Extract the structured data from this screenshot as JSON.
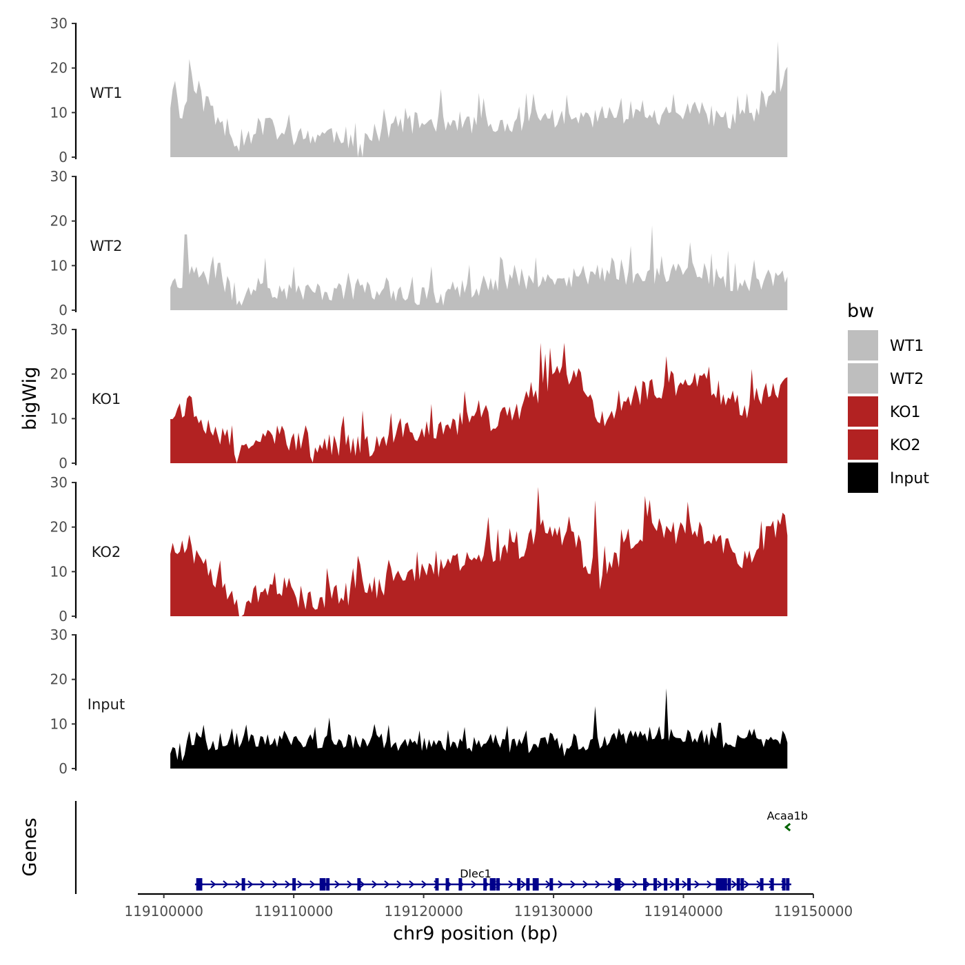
{
  "chart_data": {
    "type": "area",
    "ylabel": "bigWig",
    "xlabel": "chr9 position (bp)",
    "xlim": [
      119098000,
      119150000
    ],
    "x_ticks": [
      119100000,
      119110000,
      119120000,
      119130000,
      119140000,
      119150000
    ],
    "x_tick_labels": [
      "119100000",
      "119110000",
      "119120000",
      "119130000",
      "119140000",
      "119150000"
    ],
    "data_range": [
      119100500,
      119148000
    ],
    "ylim": [
      0,
      30
    ],
    "y_ticks": [
      0,
      10,
      20,
      30
    ],
    "y_tick_labels": [
      "0",
      "10",
      "20",
      "30"
    ],
    "legend": {
      "title": "bw",
      "position": "right",
      "entries": [
        {
          "label": "WT1",
          "color": "#bebebe"
        },
        {
          "label": "WT2",
          "color": "#bebebe"
        },
        {
          "label": "KO1",
          "color": "#b22222"
        },
        {
          "label": "KO2",
          "color": "#b22222"
        },
        {
          "label": "Input",
          "color": "#000000"
        }
      ]
    },
    "series": [
      {
        "name": "WT1",
        "color": "#bebebe",
        "seed": 11,
        "noise": 5,
        "profile": [
          [
            0,
            12
          ],
          [
            0.02,
            9
          ],
          [
            0.03,
            14
          ],
          [
            0.04,
            17
          ],
          [
            0.06,
            10
          ],
          [
            0.08,
            8
          ],
          [
            0.1,
            5
          ],
          [
            0.11,
            1.5
          ],
          [
            0.12,
            4
          ],
          [
            0.15,
            7
          ],
          [
            0.2,
            4
          ],
          [
            0.25,
            5
          ],
          [
            0.28,
            5
          ],
          [
            0.31,
            0.5
          ],
          [
            0.33,
            4
          ],
          [
            0.36,
            7
          ],
          [
            0.45,
            8
          ],
          [
            0.5,
            7
          ],
          [
            0.55,
            6
          ],
          [
            0.6,
            9
          ],
          [
            0.65,
            8
          ],
          [
            0.7,
            9
          ],
          [
            0.75,
            10
          ],
          [
            0.8,
            8
          ],
          [
            0.85,
            10
          ],
          [
            0.9,
            8
          ],
          [
            0.95,
            9
          ],
          [
            0.98,
            12
          ],
          [
            1,
            18
          ]
        ],
        "peaks": [
          [
            0.03,
            22
          ],
          [
            0.985,
            26
          ]
        ]
      },
      {
        "name": "WT2",
        "color": "#bebebe",
        "seed": 23,
        "noise": 4.5,
        "profile": [
          [
            0,
            6
          ],
          [
            0.02,
            6
          ],
          [
            0.03,
            9
          ],
          [
            0.05,
            7
          ],
          [
            0.08,
            7
          ],
          [
            0.1,
            4
          ],
          [
            0.11,
            0.5
          ],
          [
            0.13,
            5
          ],
          [
            0.2,
            4
          ],
          [
            0.3,
            4
          ],
          [
            0.35,
            4
          ],
          [
            0.4,
            3
          ],
          [
            0.45,
            3
          ],
          [
            0.5,
            5
          ],
          [
            0.55,
            6
          ],
          [
            0.6,
            7
          ],
          [
            0.65,
            6
          ],
          [
            0.7,
            8
          ],
          [
            0.75,
            7
          ],
          [
            0.8,
            8
          ],
          [
            0.85,
            9
          ],
          [
            0.88,
            7
          ],
          [
            0.92,
            6
          ],
          [
            0.95,
            6
          ],
          [
            1,
            7
          ]
        ],
        "peaks": [
          [
            0.025,
            17
          ],
          [
            0.78,
            19
          ]
        ]
      },
      {
        "name": "KO1",
        "color": "#b22222",
        "seed": 37,
        "noise": 5.5,
        "profile": [
          [
            0,
            11
          ],
          [
            0.03,
            13
          ],
          [
            0.05,
            10
          ],
          [
            0.08,
            6
          ],
          [
            0.1,
            4
          ],
          [
            0.11,
            0.3
          ],
          [
            0.12,
            2
          ],
          [
            0.14,
            7
          ],
          [
            0.18,
            6
          ],
          [
            0.22,
            3
          ],
          [
            0.23,
            1
          ],
          [
            0.25,
            4
          ],
          [
            0.3,
            4
          ],
          [
            0.33,
            3
          ],
          [
            0.35,
            5
          ],
          [
            0.4,
            7
          ],
          [
            0.45,
            8
          ],
          [
            0.5,
            9
          ],
          [
            0.55,
            10
          ],
          [
            0.6,
            16
          ],
          [
            0.63,
            20
          ],
          [
            0.67,
            18
          ],
          [
            0.69,
            9
          ],
          [
            0.72,
            11
          ],
          [
            0.75,
            15
          ],
          [
            0.8,
            17
          ],
          [
            0.85,
            18
          ],
          [
            0.9,
            15
          ],
          [
            0.93,
            12
          ],
          [
            0.97,
            16
          ],
          [
            1,
            15
          ]
        ],
        "peaks": [
          [
            0.6,
            27
          ],
          [
            0.64,
            27
          ]
        ]
      },
      {
        "name": "KO2",
        "color": "#b22222",
        "seed": 51,
        "noise": 5.5,
        "profile": [
          [
            0,
            15
          ],
          [
            0.03,
            14
          ],
          [
            0.06,
            10
          ],
          [
            0.08,
            8
          ],
          [
            0.1,
            5
          ],
          [
            0.11,
            1
          ],
          [
            0.12,
            1
          ],
          [
            0.13,
            4
          ],
          [
            0.18,
            7
          ],
          [
            0.2,
            5
          ],
          [
            0.22,
            3
          ],
          [
            0.24,
            4
          ],
          [
            0.3,
            5
          ],
          [
            0.35,
            7
          ],
          [
            0.4,
            9
          ],
          [
            0.45,
            11
          ],
          [
            0.5,
            13
          ],
          [
            0.55,
            14
          ],
          [
            0.6,
            17
          ],
          [
            0.65,
            18
          ],
          [
            0.67,
            11
          ],
          [
            0.7,
            7
          ],
          [
            0.73,
            14
          ],
          [
            0.78,
            18
          ],
          [
            0.85,
            19
          ],
          [
            0.9,
            16
          ],
          [
            0.93,
            12
          ],
          [
            0.97,
            18
          ],
          [
            1,
            20
          ]
        ],
        "peaks": [
          [
            0.595,
            29
          ],
          [
            0.69,
            26
          ],
          [
            0.77,
            27
          ]
        ]
      },
      {
        "name": "Input",
        "color": "#000000",
        "seed": 67,
        "noise": 3.5,
        "profile": [
          [
            0,
            4
          ],
          [
            0.02,
            3
          ],
          [
            0.04,
            7
          ],
          [
            0.06,
            5
          ],
          [
            0.1,
            6
          ],
          [
            0.2,
            6
          ],
          [
            0.3,
            6
          ],
          [
            0.4,
            5
          ],
          [
            0.5,
            5
          ],
          [
            0.6,
            5
          ],
          [
            0.65,
            4
          ],
          [
            0.7,
            6
          ],
          [
            0.75,
            7
          ],
          [
            0.8,
            8
          ],
          [
            0.83,
            6
          ],
          [
            0.86,
            7
          ],
          [
            0.9,
            6
          ],
          [
            0.95,
            6
          ],
          [
            1,
            7
          ]
        ],
        "peaks": [
          [
            0.805,
            18
          ],
          [
            0.69,
            14
          ]
        ]
      }
    ],
    "genes_track": {
      "label": "Genes",
      "genes": [
        {
          "name": "Dlec1",
          "strand": "+",
          "color": "#00008b",
          "start": 119102400,
          "end": 119148300,
          "exons": [
            119102600,
            119102800,
            119106100,
            119110000,
            119112100,
            119112300,
            119112600,
            119115000,
            119121000,
            119121800,
            119122800,
            119124700,
            119125200,
            119125400,
            119125700,
            119127300,
            119128000,
            119128500,
            119128700,
            119129800,
            119134800,
            119135000,
            119137000,
            119137800,
            119138600,
            119139500,
            119140400,
            119142600,
            119142800,
            119143000,
            119143200,
            119143500,
            119144200,
            119144500,
            119146000,
            119146800,
            119147700,
            119148000
          ]
        },
        {
          "name": "Acaa1b",
          "strand": "-",
          "color": "#006400",
          "start": 119147800,
          "end": 119148300,
          "exons": [
            119148000
          ]
        }
      ]
    }
  }
}
